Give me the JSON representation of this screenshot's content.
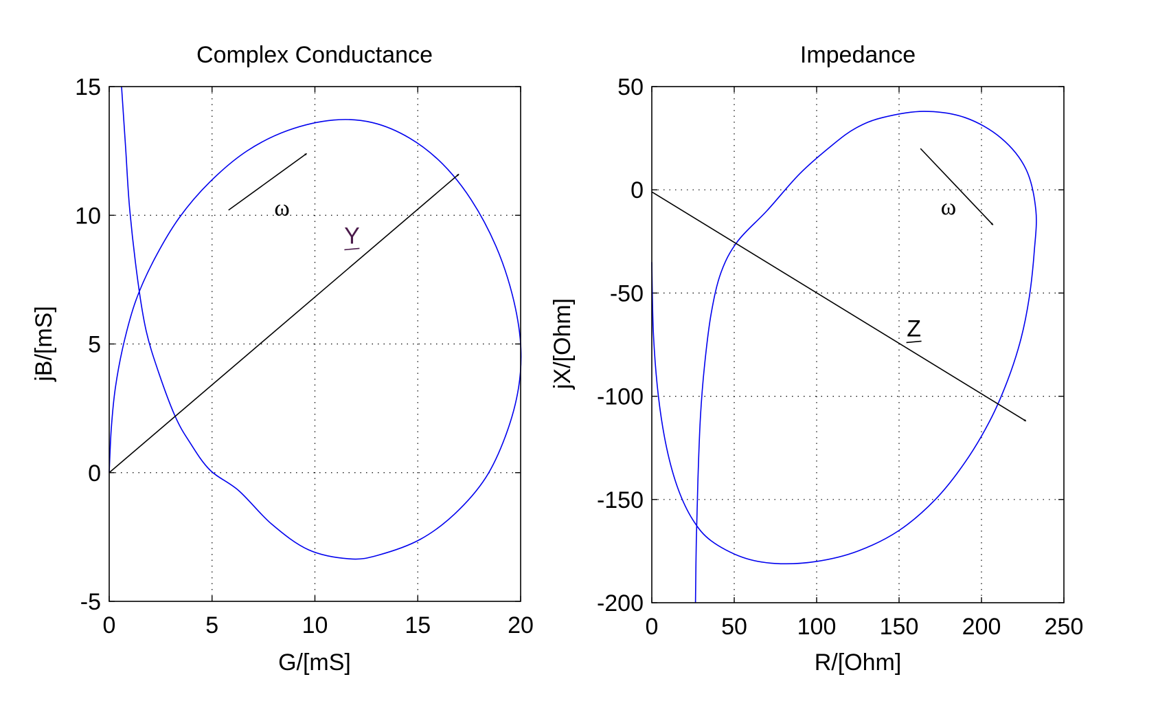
{
  "chart_data": [
    {
      "type": "line",
      "title": "Complex Conductance",
      "xlabel": "G/[mS]",
      "ylabel": "jB/[mS]",
      "xlim": [
        0,
        20
      ],
      "ylim": [
        -5,
        15
      ],
      "xticks": [
        0,
        5,
        10,
        15,
        20
      ],
      "yticks": [
        -5,
        0,
        5,
        10,
        15
      ],
      "xtick_labels": [
        "0",
        "5",
        "10",
        "15",
        "20"
      ],
      "ytick_labels": [
        "-5",
        "0",
        "5",
        "10",
        "15"
      ],
      "grid": true,
      "series": [
        {
          "color": "#0000ee",
          "x": [
            0,
            0.1,
            0.3,
            0.7,
            1.3,
            2.2,
            3.4,
            4.9,
            6.7,
            8.7,
            10.9,
            12.8,
            14.6,
            16.2,
            17.6,
            18.8,
            19.6,
            20.0,
            19.9,
            19.3,
            18.3,
            16.8,
            15.1,
            13.1,
            11.7,
            9.7,
            7.9,
            6.3,
            4.9,
            3.9,
            3.2,
            2.4,
            1.8,
            1.4,
            1.0,
            0.8,
            0.6
          ],
          "y": [
            0,
            1.7,
            3.3,
            5.0,
            6.7,
            8.3,
            9.9,
            11.3,
            12.5,
            13.3,
            13.7,
            13.6,
            13.0,
            12.0,
            10.6,
            8.8,
            6.9,
            5.0,
            3.3,
            1.5,
            -0.2,
            -1.6,
            -2.6,
            -3.2,
            -3.35,
            -3.0,
            -2.0,
            -0.7,
            0.1,
            1.2,
            2.2,
            3.9,
            5.5,
            7.4,
            10.2,
            12.6,
            15.0
          ]
        }
      ],
      "phasor": {
        "name": "Y",
        "from": [
          0,
          0
        ],
        "to": [
          17,
          11.6
        ],
        "label_at": [
          11.8,
          8.9
        ],
        "label_color": "#4a1a4a"
      },
      "omega_arrow": {
        "label": "ω",
        "from": [
          5.8,
          10.2
        ],
        "to": [
          9.6,
          12.4
        ],
        "label_at": [
          8.4,
          10.0
        ]
      }
    },
    {
      "type": "line",
      "title": "Impedance",
      "xlabel": "R/[Ohm]",
      "ylabel": "jX/[Ohm]",
      "xlim": [
        0,
        250
      ],
      "ylim": [
        -200,
        50
      ],
      "xticks": [
        0,
        50,
        100,
        150,
        200,
        250
      ],
      "yticks": [
        -200,
        -150,
        -100,
        -50,
        0,
        50
      ],
      "xtick_labels": [
        "0",
        "50",
        "100",
        "150",
        "200",
        "250"
      ],
      "ytick_labels": [
        "-200",
        "-150",
        "-100",
        "-50",
        "0",
        "50"
      ],
      "grid": true,
      "series": [
        {
          "color": "#0000ee",
          "x": [
            0,
            1,
            4,
            9,
            16,
            25,
            36,
            55,
            75,
            100,
            125,
            150,
            172,
            190,
            205,
            216,
            224,
            229,
            232,
            233,
            227,
            212,
            190,
            165,
            140,
            124,
            110,
            90,
            70,
            52,
            42,
            36,
            32,
            29.5,
            28,
            27,
            26.5
          ],
          "y": [
            -35,
            -70,
            -100,
            -125,
            -145,
            -160,
            -170,
            -178,
            -181,
            -180,
            -175,
            -165,
            -150,
            -132,
            -112,
            -92,
            -72,
            -52,
            -30,
            -10,
            10,
            25,
            35,
            38,
            35,
            30,
            22,
            8,
            -10,
            -25,
            -40,
            -60,
            -85,
            -110,
            -140,
            -170,
            -200
          ]
        }
      ],
      "phasor": {
        "name": "Z",
        "from": [
          0,
          -1
        ],
        "to": [
          227,
          -112
        ],
        "label_at": [
          159,
          -71
        ],
        "label_color": "#000000"
      },
      "omega_arrow": {
        "label": "ω",
        "from": [
          163,
          20
        ],
        "to": [
          207,
          -17
        ],
        "label_at": [
          180,
          -12
        ]
      }
    }
  ]
}
